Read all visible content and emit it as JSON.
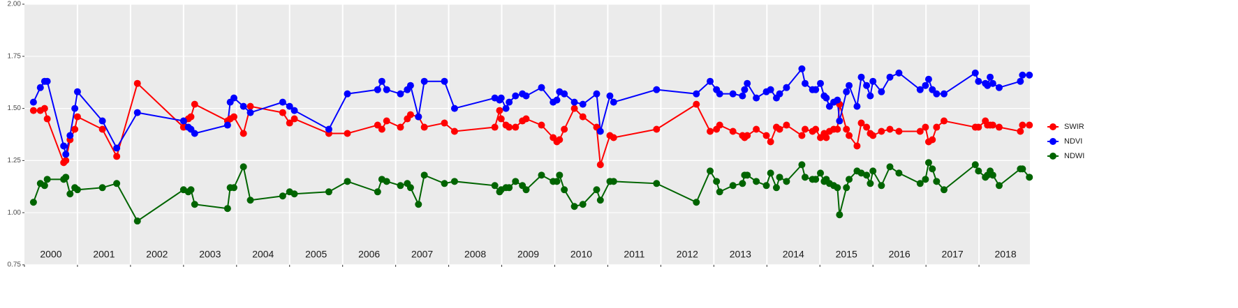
{
  "chart_data": {
    "type": "line",
    "x": [
      2000.17,
      2000.3,
      2000.38,
      2000.43,
      2000.74,
      2000.78,
      2000.86,
      2000.95,
      2001.0,
      2001.47,
      2001.74,
      2002.13,
      2003.0,
      2003.09,
      2003.14,
      2003.21,
      2003.83,
      2003.88,
      2003.95,
      2004.13,
      2004.26,
      2004.87,
      2005.0,
      2005.09,
      2005.74,
      2006.09,
      2006.66,
      2006.74,
      2006.83,
      2007.09,
      2007.22,
      2007.28,
      2007.43,
      2007.54,
      2007.92,
      2008.11,
      2008.87,
      2008.96,
      2008.99,
      2009.08,
      2009.14,
      2009.26,
      2009.39,
      2009.46,
      2009.75,
      2009.97,
      2010.04,
      2010.09,
      2010.18,
      2010.37,
      2010.53,
      2010.79,
      2010.86,
      2011.04,
      2011.11,
      2011.92,
      2012.67,
      2012.93,
      2013.05,
      2013.11,
      2013.36,
      2013.54,
      2013.58,
      2013.63,
      2013.8,
      2013.99,
      2014.07,
      2014.18,
      2014.24,
      2014.37,
      2014.66,
      2014.72,
      2014.86,
      2014.92,
      2015.01,
      2015.08,
      2015.12,
      2015.18,
      2015.26,
      2015.33,
      2015.37,
      2015.5,
      2015.55,
      2015.7,
      2015.78,
      2015.88,
      2015.95,
      2016.0,
      2016.16,
      2016.32,
      2016.49,
      2016.89,
      2016.99,
      2017.05,
      2017.12,
      2017.2,
      2017.34,
      2017.93,
      2017.99,
      2018.12,
      2018.16,
      2018.21,
      2018.26,
      2018.38,
      2018.78,
      2018.82,
      2018.95
    ],
    "series": [
      {
        "name": "SWIR",
        "color": "#ff0000",
        "values": [
          1.49,
          1.49,
          1.5,
          1.45,
          1.24,
          1.25,
          1.35,
          1.4,
          1.46,
          1.4,
          1.27,
          1.62,
          1.41,
          1.45,
          1.46,
          1.52,
          1.44,
          1.45,
          1.46,
          1.38,
          1.51,
          1.48,
          1.43,
          1.45,
          1.38,
          1.38,
          1.42,
          1.4,
          1.44,
          1.41,
          1.45,
          1.47,
          1.46,
          1.41,
          1.43,
          1.39,
          1.41,
          1.49,
          1.45,
          1.42,
          1.41,
          1.41,
          1.44,
          1.45,
          1.42,
          1.36,
          1.34,
          1.35,
          1.4,
          1.5,
          1.46,
          1.41,
          1.23,
          1.37,
          1.36,
          1.4,
          1.52,
          1.39,
          1.4,
          1.42,
          1.39,
          1.37,
          1.36,
          1.37,
          1.4,
          1.37,
          1.34,
          1.41,
          1.4,
          1.42,
          1.37,
          1.4,
          1.39,
          1.4,
          1.36,
          1.38,
          1.36,
          1.39,
          1.4,
          1.4,
          1.52,
          1.4,
          1.37,
          1.32,
          1.43,
          1.41,
          1.38,
          1.37,
          1.39,
          1.4,
          1.39,
          1.39,
          1.41,
          1.34,
          1.35,
          1.41,
          1.44,
          1.41,
          1.41,
          1.44,
          1.42,
          1.42,
          1.42,
          1.41,
          1.39,
          1.42,
          1.42
        ]
      },
      {
        "name": "NDVI",
        "color": "#0000ff",
        "values": [
          1.53,
          1.6,
          1.63,
          1.63,
          1.32,
          1.28,
          1.37,
          1.5,
          1.58,
          1.44,
          1.31,
          1.48,
          1.44,
          1.41,
          1.4,
          1.38,
          1.42,
          1.53,
          1.55,
          1.51,
          1.48,
          1.53,
          1.51,
          1.49,
          1.4,
          1.57,
          1.59,
          1.63,
          1.59,
          1.57,
          1.59,
          1.61,
          1.46,
          1.63,
          1.63,
          1.5,
          1.55,
          1.54,
          1.55,
          1.5,
          1.53,
          1.56,
          1.57,
          1.56,
          1.6,
          1.53,
          1.54,
          1.58,
          1.57,
          1.53,
          1.52,
          1.57,
          1.39,
          1.56,
          1.53,
          1.59,
          1.57,
          1.63,
          1.59,
          1.57,
          1.57,
          1.56,
          1.59,
          1.62,
          1.55,
          1.58,
          1.59,
          1.55,
          1.57,
          1.6,
          1.69,
          1.62,
          1.59,
          1.59,
          1.62,
          1.56,
          1.55,
          1.51,
          1.53,
          1.54,
          1.44,
          1.58,
          1.61,
          1.51,
          1.65,
          1.61,
          1.56,
          1.63,
          1.58,
          1.65,
          1.67,
          1.59,
          1.61,
          1.64,
          1.59,
          1.57,
          1.57,
          1.67,
          1.63,
          1.62,
          1.61,
          1.65,
          1.62,
          1.6,
          1.63,
          1.66,
          1.66
        ]
      },
      {
        "name": "NDWI",
        "color": "#006400",
        "values": [
          1.05,
          1.14,
          1.13,
          1.16,
          1.16,
          1.17,
          1.09,
          1.12,
          1.11,
          1.12,
          1.14,
          0.96,
          1.11,
          1.1,
          1.11,
          1.04,
          1.02,
          1.12,
          1.12,
          1.22,
          1.06,
          1.08,
          1.1,
          1.09,
          1.1,
          1.15,
          1.1,
          1.16,
          1.15,
          1.13,
          1.14,
          1.12,
          1.04,
          1.18,
          1.14,
          1.15,
          1.13,
          1.1,
          1.11,
          1.12,
          1.12,
          1.15,
          1.13,
          1.11,
          1.18,
          1.15,
          1.15,
          1.18,
          1.11,
          1.03,
          1.04,
          1.11,
          1.06,
          1.15,
          1.15,
          1.14,
          1.05,
          1.2,
          1.15,
          1.1,
          1.13,
          1.14,
          1.18,
          1.18,
          1.15,
          1.13,
          1.19,
          1.12,
          1.17,
          1.15,
          1.23,
          1.17,
          1.16,
          1.16,
          1.19,
          1.15,
          1.16,
          1.14,
          1.13,
          1.12,
          0.99,
          1.12,
          1.16,
          1.2,
          1.19,
          1.18,
          1.14,
          1.2,
          1.13,
          1.22,
          1.19,
          1.14,
          1.16,
          1.24,
          1.21,
          1.15,
          1.11,
          1.23,
          1.2,
          1.17,
          1.18,
          1.2,
          1.18,
          1.13,
          1.21,
          1.21,
          1.17
        ]
      }
    ],
    "xlim": [
      2000,
      2018.96
    ],
    "xticks": [
      2000,
      2001,
      2002,
      2003,
      2004,
      2005,
      2006,
      2007,
      2008,
      2009,
      2010,
      2011,
      2012,
      2013,
      2014,
      2015,
      2016,
      2017,
      2018
    ],
    "ylim": [
      0.75,
      2
    ],
    "yticks": [
      0.75,
      {
        "value": 1,
        "label": "1.00"
      },
      1.25,
      {
        "value": 1.5,
        "label": "1.50"
      },
      1.75,
      {
        "value": 2,
        "label": "2.00"
      }
    ],
    "grid": true,
    "legend": "right"
  }
}
